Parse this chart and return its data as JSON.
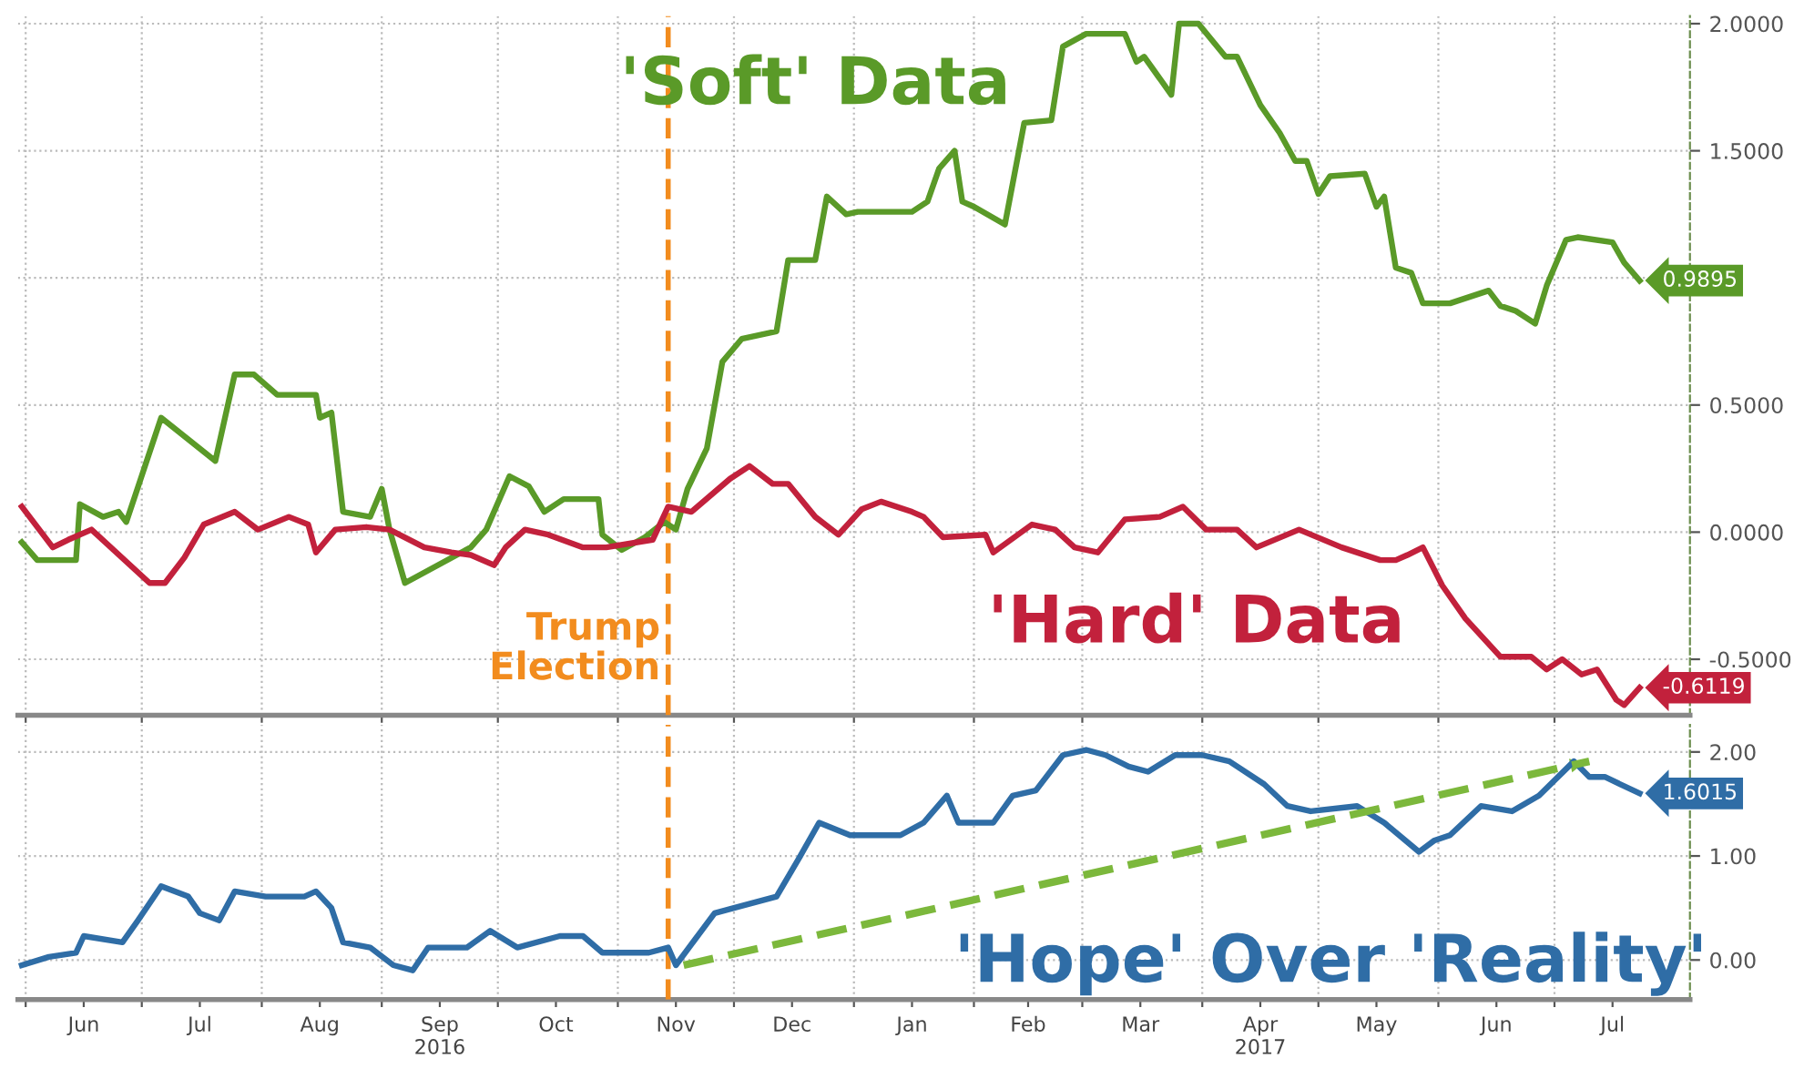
{
  "chart_data": [
    {
      "type": "line",
      "tick_labels": "y",
      "grid": true,
      "ylim": [
        -0.72,
        2.03
      ],
      "yticks": [
        {
          "value": 2,
          "label": "2.0000"
        },
        {
          "value": 1.5,
          "label": "1.5000"
        },
        {
          "value": 1,
          "label": null
        },
        {
          "value": 0.5,
          "label": "0.5000"
        },
        {
          "value": 0,
          "label": "0.0000"
        },
        {
          "value": -0.5,
          "label": "-0.5000"
        }
      ],
      "xlim": [
        "2016-05-30",
        "2017-08-05"
      ],
      "xticks": [
        {
          "value": "2016-06-01",
          "label": null
        },
        {
          "value": "2016-07-01",
          "label": null
        },
        {
          "value": "2016-08-01",
          "label": null
        },
        {
          "value": "2016-09-01",
          "label": null
        },
        {
          "value": "2016-10-01",
          "label": null
        },
        {
          "value": "2016-11-01",
          "label": null
        },
        {
          "value": "2016-12-01",
          "label": null
        },
        {
          "value": "2017-01-01",
          "label": null
        },
        {
          "value": "2017-02-01",
          "label": null
        },
        {
          "value": "2017-03-01",
          "label": null
        },
        {
          "value": "2017-04-01",
          "label": null
        },
        {
          "value": "2017-05-01",
          "label": null
        },
        {
          "value": "2017-06-01",
          "label": null
        },
        {
          "value": "2017-07-01",
          "label": null
        }
      ],
      "ref_lines": [
        {
          "axis": "x",
          "value": "2016-11-14",
          "label": "Trump\nElection",
          "color": "#f28c1e",
          "line_style": "dashed"
        }
      ],
      "series": [
        {
          "name": "'Soft' Data",
          "color": "#5a9a28",
          "x": [
            "2016-05-31",
            "2016-06-04",
            "2016-06-14",
            "2016-06-15",
            "2016-06-21",
            "2016-06-25",
            "2016-06-27",
            "2016-07-06",
            "2016-07-20",
            "2016-07-25",
            "2016-07-30",
            "2016-08-05",
            "2016-08-15",
            "2016-08-16",
            "2016-08-19",
            "2016-08-22",
            "2016-08-29",
            "2016-09-01",
            "2016-09-03",
            "2016-09-07",
            "2016-09-24",
            "2016-09-28",
            "2016-10-04",
            "2016-10-09",
            "2016-10-13",
            "2016-10-18",
            "2016-10-27",
            "2016-10-28",
            "2016-11-02",
            "2016-11-08",
            "2016-11-13",
            "2016-11-16",
            "2016-11-19",
            "2016-11-24",
            "2016-11-28",
            "2016-12-03",
            "2016-12-12",
            "2016-12-15",
            "2016-12-22",
            "2016-12-25",
            "2016-12-30",
            "2017-01-02",
            "2017-01-16",
            "2017-01-20",
            "2017-01-23",
            "2017-01-27",
            "2017-01-29",
            "2017-02-01",
            "2017-02-09",
            "2017-02-14",
            "2017-02-21",
            "2017-02-24",
            "2017-03-02",
            "2017-03-12",
            "2017-03-15",
            "2017-03-17",
            "2017-03-24",
            "2017-03-26",
            "2017-03-31",
            "2017-04-07",
            "2017-04-10",
            "2017-04-16",
            "2017-04-21",
            "2017-04-25",
            "2017-04-28",
            "2017-05-01",
            "2017-05-04",
            "2017-05-13",
            "2017-05-16",
            "2017-05-18",
            "2017-05-21",
            "2017-05-25",
            "2017-05-28",
            "2017-06-04",
            "2017-06-14",
            "2017-06-17",
            "2017-06-21",
            "2017-06-26",
            "2017-06-29",
            "2017-07-04",
            "2017-07-07",
            "2017-07-16",
            "2017-07-19",
            "2017-07-23"
          ],
          "values": [
            -0.04,
            -0.11,
            -0.11,
            0.11,
            0.06,
            0.08,
            0.04,
            0.45,
            0.28,
            0.62,
            0.62,
            0.54,
            0.54,
            0.45,
            0.47,
            0.08,
            0.06,
            0.17,
            0.01,
            -0.2,
            -0.06,
            0.01,
            0.22,
            0.18,
            0.08,
            0.13,
            0.13,
            -0.01,
            -0.07,
            -0.02,
            0.04,
            0.01,
            0.17,
            0.33,
            0.67,
            0.76,
            0.79,
            1.07,
            1.07,
            1.32,
            1.25,
            1.26,
            1.26,
            1.3,
            1.43,
            1.5,
            1.3,
            1.28,
            1.21,
            1.61,
            1.62,
            1.91,
            1.96,
            1.96,
            1.85,
            1.87,
            1.72,
            2.0,
            2.0,
            1.87,
            1.87,
            1.68,
            1.57,
            1.46,
            1.46,
            1.33,
            1.4,
            1.41,
            1.28,
            1.32,
            1.04,
            1.02,
            0.9,
            0.9,
            0.95,
            0.89,
            0.87,
            0.82,
            0.97,
            1.15,
            1.16,
            1.14,
            1.06,
            0.9895
          ],
          "value_labels": [
            null,
            null,
            null,
            null,
            null,
            null,
            null,
            null,
            null,
            null,
            null,
            null,
            null,
            null,
            null,
            null,
            null,
            null,
            null,
            null,
            null,
            null,
            null,
            null,
            null,
            null,
            null,
            null,
            null,
            null,
            null,
            null,
            null,
            null,
            null,
            null,
            null,
            null,
            null,
            null,
            null,
            null,
            null,
            null,
            null,
            null,
            null,
            null,
            null,
            null,
            null,
            null,
            null,
            null,
            null,
            null,
            null,
            null,
            null,
            null,
            null,
            null,
            null,
            null,
            null,
            null,
            null,
            null,
            null,
            null,
            null,
            null,
            null,
            null,
            null,
            null,
            null,
            null,
            null,
            null,
            null,
            null,
            null,
            "0.9895"
          ]
        },
        {
          "name": "'Hard' Data",
          "color": "#c2213c",
          "x": [
            "2016-05-31",
            "2016-06-08",
            "2016-06-12",
            "2016-06-18",
            "2016-07-03",
            "2016-07-07",
            "2016-07-12",
            "2016-07-17",
            "2016-07-25",
            "2016-07-31",
            "2016-08-08",
            "2016-08-13",
            "2016-08-15",
            "2016-08-20",
            "2016-08-28",
            "2016-09-03",
            "2016-09-12",
            "2016-09-19",
            "2016-09-24",
            "2016-09-30",
            "2016-10-03",
            "2016-10-08",
            "2016-10-14",
            "2016-10-23",
            "2016-10-29",
            "2016-11-10",
            "2016-11-14",
            "2016-11-20",
            "2016-11-30",
            "2016-12-05",
            "2016-12-11",
            "2016-12-15",
            "2016-12-22",
            "2016-12-28",
            "2017-01-03",
            "2017-01-08",
            "2017-01-16",
            "2017-01-19",
            "2017-01-24",
            "2017-02-04",
            "2017-02-06",
            "2017-02-16",
            "2017-02-22",
            "2017-02-27",
            "2017-03-05",
            "2017-03-12",
            "2017-03-21",
            "2017-03-27",
            "2017-04-02",
            "2017-04-10",
            "2017-04-15",
            "2017-04-26",
            "2017-05-07",
            "2017-05-17",
            "2017-05-21",
            "2017-05-24",
            "2017-05-28",
            "2017-06-02",
            "2017-06-08",
            "2017-06-17",
            "2017-06-25",
            "2017-06-29",
            "2017-07-03",
            "2017-07-08",
            "2017-07-12",
            "2017-07-17",
            "2017-07-19",
            "2017-07-23"
          ],
          "values": [
            0.1,
            -0.06,
            -0.03,
            0.01,
            -0.2,
            -0.2,
            -0.1,
            0.03,
            0.08,
            0.01,
            0.06,
            0.03,
            -0.08,
            0.01,
            0.02,
            0.01,
            -0.06,
            -0.08,
            -0.09,
            -0.13,
            -0.06,
            0.01,
            -0.01,
            -0.06,
            -0.06,
            -0.03,
            0.1,
            0.08,
            0.21,
            0.26,
            0.19,
            0.19,
            0.06,
            -0.01,
            0.09,
            0.12,
            0.08,
            0.06,
            -0.02,
            -0.01,
            -0.08,
            0.03,
            0.01,
            -0.06,
            -0.08,
            0.05,
            0.06,
            0.1,
            0.01,
            0.01,
            -0.06,
            0.01,
            -0.06,
            -0.11,
            -0.11,
            -0.09,
            -0.06,
            -0.21,
            -0.34,
            -0.49,
            -0.49,
            -0.54,
            -0.5,
            -0.56,
            -0.54,
            -0.66,
            -0.68,
            -0.6119
          ],
          "value_labels": [
            null,
            null,
            null,
            null,
            null,
            null,
            null,
            null,
            null,
            null,
            null,
            null,
            null,
            null,
            null,
            null,
            null,
            null,
            null,
            null,
            null,
            null,
            null,
            null,
            null,
            null,
            null,
            null,
            null,
            null,
            null,
            null,
            null,
            null,
            null,
            null,
            null,
            null,
            null,
            null,
            null,
            null,
            null,
            null,
            null,
            null,
            null,
            null,
            null,
            null,
            null,
            null,
            null,
            null,
            null,
            null,
            null,
            null,
            null,
            null,
            null,
            null,
            null,
            null,
            null,
            null,
            null,
            "-0.6119"
          ]
        }
      ]
    },
    {
      "type": "line",
      "grid": true,
      "ylim": [
        -0.38,
        2.26
      ],
      "yticks": [
        {
          "value": 2,
          "label": "2.00"
        },
        {
          "value": 1,
          "label": "1.00"
        },
        {
          "value": 0,
          "label": "0.00"
        }
      ],
      "xlim": [
        "2016-05-30",
        "2017-08-05"
      ],
      "xticks": [
        {
          "value": "2016-06-01",
          "label": null
        },
        {
          "value": "2016-06-16",
          "label": "Jun"
        },
        {
          "value": "2016-07-01",
          "label": null
        },
        {
          "value": "2016-07-16",
          "label": "Jul"
        },
        {
          "value": "2016-08-01",
          "label": null
        },
        {
          "value": "2016-08-16",
          "label": "Aug"
        },
        {
          "value": "2016-09-01",
          "label": null
        },
        {
          "value": "2016-09-16",
          "label": "Sep\n2016"
        },
        {
          "value": "2016-10-01",
          "label": null
        },
        {
          "value": "2016-10-16",
          "label": "Oct"
        },
        {
          "value": "2016-11-01",
          "label": null
        },
        {
          "value": "2016-11-16",
          "label": "Nov"
        },
        {
          "value": "2016-12-01",
          "label": null
        },
        {
          "value": "2016-12-16",
          "label": "Dec"
        },
        {
          "value": "2017-01-01",
          "label": null
        },
        {
          "value": "2017-01-16",
          "label": "Jan"
        },
        {
          "value": "2017-02-01",
          "label": null
        },
        {
          "value": "2017-02-15",
          "label": "Feb"
        },
        {
          "value": "2017-03-01",
          "label": null
        },
        {
          "value": "2017-03-16",
          "label": "Mar"
        },
        {
          "value": "2017-04-01",
          "label": null
        },
        {
          "value": "2017-04-16",
          "label": "Apr\n2017"
        },
        {
          "value": "2017-05-01",
          "label": null
        },
        {
          "value": "2017-05-16",
          "label": "May"
        },
        {
          "value": "2017-06-01",
          "label": null
        },
        {
          "value": "2017-06-16",
          "label": "Jun"
        },
        {
          "value": "2017-07-01",
          "label": null
        },
        {
          "value": "2017-07-16",
          "label": "Jul"
        }
      ],
      "ref_lines": [
        {
          "axis": "x",
          "value": "2016-11-14",
          "color": "#f28c1e",
          "line_style": "dashed"
        }
      ],
      "series": [
        {
          "name": "'Hope' Over 'Reality'",
          "color": "#2f6da6",
          "x": [
            "2016-05-31",
            "2016-06-07",
            "2016-06-14",
            "2016-06-16",
            "2016-06-26",
            "2016-06-30",
            "2016-07-06",
            "2016-07-13",
            "2016-07-16",
            "2016-07-21",
            "2016-07-25",
            "2016-08-02",
            "2016-08-12",
            "2016-08-15",
            "2016-08-19",
            "2016-08-22",
            "2016-08-29",
            "2016-09-04",
            "2016-09-09",
            "2016-09-13",
            "2016-09-23",
            "2016-09-29",
            "2016-10-06",
            "2016-10-17",
            "2016-10-23",
            "2016-10-28",
            "2016-11-09",
            "2016-11-14",
            "2016-11-16",
            "2016-11-26",
            "2016-12-01",
            "2016-12-12",
            "2016-12-18",
            "2016-12-23",
            "2016-12-31",
            "2017-01-13",
            "2017-01-19",
            "2017-01-25",
            "2017-01-28",
            "2017-02-06",
            "2017-02-11",
            "2017-02-17",
            "2017-02-24",
            "2017-03-02",
            "2017-03-07",
            "2017-03-13",
            "2017-03-18",
            "2017-03-25",
            "2017-04-01",
            "2017-04-08",
            "2017-04-17",
            "2017-04-23",
            "2017-04-29",
            "2017-05-11",
            "2017-05-18",
            "2017-05-27",
            "2017-05-31",
            "2017-06-04",
            "2017-06-12",
            "2017-06-20",
            "2017-06-27",
            "2017-07-06",
            "2017-07-10",
            "2017-07-14",
            "2017-07-23"
          ],
          "values": [
            -0.05,
            0.03,
            0.07,
            0.23,
            0.17,
            0.38,
            0.71,
            0.61,
            0.45,
            0.38,
            0.66,
            0.61,
            0.61,
            0.66,
            0.5,
            0.17,
            0.12,
            -0.05,
            -0.1,
            0.12,
            0.12,
            0.28,
            0.12,
            0.23,
            0.23,
            0.07,
            0.07,
            0.12,
            -0.05,
            0.45,
            0.5,
            0.61,
            0.99,
            1.32,
            1.2,
            1.2,
            1.32,
            1.58,
            1.32,
            1.32,
            1.58,
            1.63,
            1.97,
            2.02,
            1.97,
            1.86,
            1.81,
            1.97,
            1.97,
            1.91,
            1.69,
            1.48,
            1.43,
            1.48,
            1.32,
            1.04,
            1.15,
            1.2,
            1.48,
            1.43,
            1.58,
            1.91,
            1.76,
            1.76,
            1.6015
          ],
          "value_labels": [
            null,
            null,
            null,
            null,
            null,
            null,
            null,
            null,
            null,
            null,
            null,
            null,
            null,
            null,
            null,
            null,
            null,
            null,
            null,
            null,
            null,
            null,
            null,
            null,
            null,
            null,
            null,
            null,
            null,
            null,
            null,
            null,
            null,
            null,
            null,
            null,
            null,
            null,
            null,
            null,
            null,
            null,
            null,
            null,
            null,
            null,
            null,
            null,
            null,
            null,
            null,
            null,
            null,
            null,
            null,
            null,
            null,
            null,
            null,
            null,
            null,
            null,
            null,
            null,
            "1.6015"
          ]
        },
        {
          "type": "line",
          "color": "#7cb83c",
          "line_style": "dashed",
          "x": [
            "2016-11-18",
            "2017-07-10"
          ],
          "values": [
            -0.05,
            1.91
          ]
        }
      ]
    }
  ]
}
